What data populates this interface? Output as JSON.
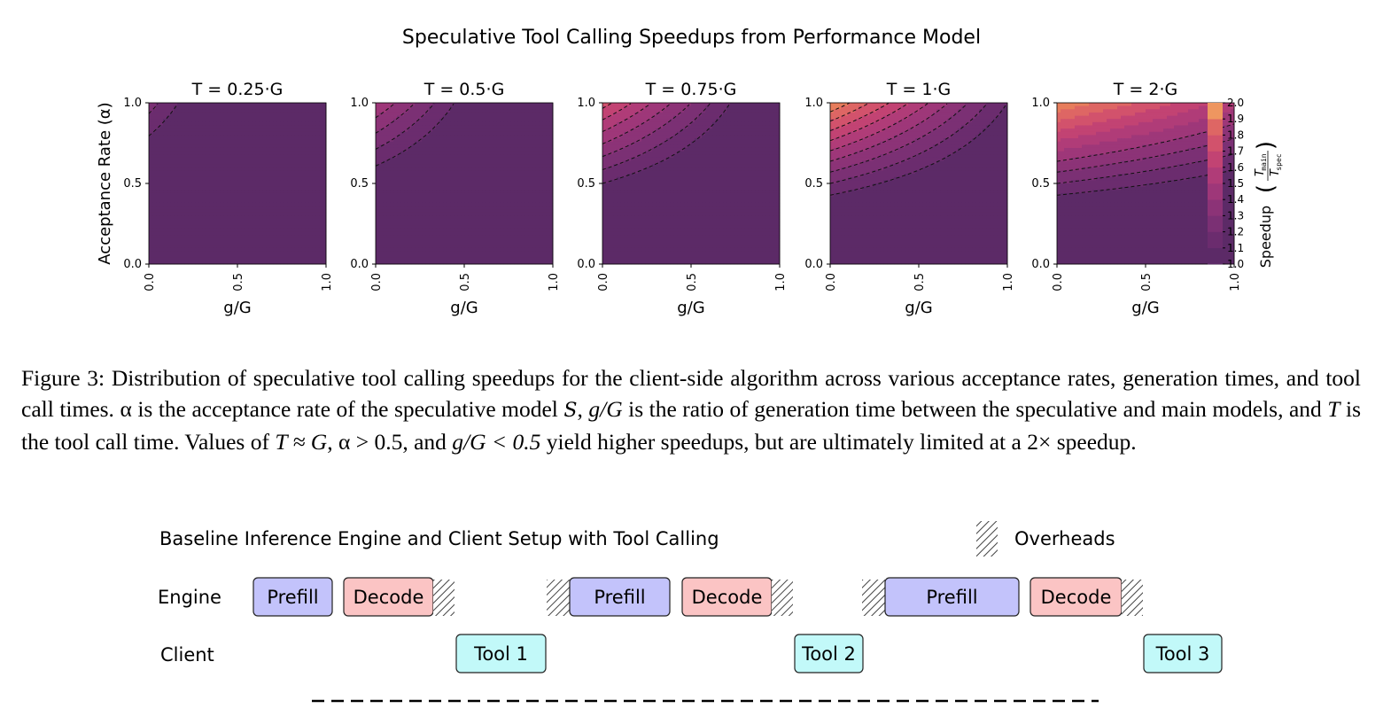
{
  "figure": {
    "title": "Speculative Tool Calling Speedups from Performance Model",
    "ylabel": "Acceptance Rate (α)",
    "xlabel": "g/G",
    "colorbar_label": "Speedup",
    "colorbar_fraction_num": "T",
    "colorbar_fraction_num_sub": "main",
    "colorbar_fraction_den": "T",
    "colorbar_fraction_den_sub": "spec",
    "colormap": [
      "#5c2a67",
      "#6b2c6e",
      "#7b3074",
      "#8c3377",
      "#9e3779",
      "#b03c78",
      "#c24373",
      "#d2526c",
      "#de6664",
      "#e77d5c",
      "#ee9660"
    ]
  },
  "chart_data": [
    {
      "type": "heatmap",
      "title": "T = 0.25·G",
      "T_over_G": 0.25,
      "xlabel": "g/G",
      "ylabel": "Acceptance Rate (α)",
      "xlim": [
        0,
        1
      ],
      "ylim": [
        0,
        1
      ],
      "xticks": [
        "0.0",
        "0.5",
        "1.0"
      ],
      "yticks": [
        "0.0",
        "0.5",
        "1.0"
      ],
      "max_speedup": 1.22
    },
    {
      "type": "heatmap",
      "title": "T = 0.5·G",
      "T_over_G": 0.5,
      "xlabel": "g/G",
      "xlim": [
        0,
        1
      ],
      "ylim": [
        0,
        1
      ],
      "xticks": [
        "0.0",
        "0.5",
        "1.0"
      ],
      "yticks": [
        "0.0",
        "0.5",
        "1.0"
      ],
      "max_speedup": 1.5
    },
    {
      "type": "heatmap",
      "title": "T = 0.75·G",
      "T_over_G": 0.75,
      "xlabel": "g/G",
      "xlim": [
        0,
        1
      ],
      "ylim": [
        0,
        1
      ],
      "xticks": [
        "0.0",
        "0.5",
        "1.0"
      ],
      "yticks": [
        "0.0",
        "0.5",
        "1.0"
      ],
      "max_speedup": 1.75
    },
    {
      "type": "heatmap",
      "title": "T = 1·G",
      "T_over_G": 1,
      "xlabel": "g/G",
      "xlim": [
        0,
        1
      ],
      "ylim": [
        0,
        1
      ],
      "xticks": [
        "0.0",
        "0.5",
        "1.0"
      ],
      "yticks": [
        "0.0",
        "0.5",
        "1.0"
      ],
      "max_speedup": 2.0
    },
    {
      "type": "heatmap",
      "title": "T = 2·G",
      "T_over_G": 2,
      "xlabel": "g/G",
      "xlim": [
        0,
        1
      ],
      "ylim": [
        0,
        1
      ],
      "xticks": [
        "0.0",
        "0.5",
        "1.0"
      ],
      "yticks": [
        "0.0",
        "0.5",
        "1.0"
      ],
      "max_speedup": 1.5
    }
  ],
  "colorbar": {
    "range": [
      1.0,
      2.0
    ],
    "ticks": [
      "1.0",
      "1.1",
      "1.2",
      "1.3",
      "1.4",
      "1.5",
      "1.6",
      "1.7",
      "1.8",
      "1.9",
      "2.0"
    ]
  },
  "caption": {
    "label": "Figure 3:",
    "text_1": " Distribution of speculative tool calling speedups for the client-side algorithm across various acceptance rates, generation times, and tool call times. α is the acceptance rate of the speculative model ",
    "symbol_S": "S",
    "text_2": ", ",
    "symbol_gG": "g/G",
    "text_3": " is the ratio of generation time between the speculative and main models, and ",
    "symbol_T": "T",
    "text_4": " is the tool call time. Values of ",
    "symbol_TG": "T ≈ G",
    "text_5": ", α > 0.5, and ",
    "symbol_gG2": "g/G < 0.5",
    "text_6": " yield higher speedups, but are ultimately limited at a 2× speedup."
  },
  "timeline": {
    "title": "Baseline Inference Engine and Client Setup with Tool Calling",
    "legend_overheads": "Overheads",
    "row_engine": "Engine",
    "row_client": "Client",
    "prefill_label": "Prefill",
    "decode_label": "Decode",
    "tools": [
      "Tool 1",
      "Tool 2",
      "Tool 3"
    ],
    "colors": {
      "prefill": "#c3c3fb",
      "decode": "#fbc4c4",
      "tool": "#c2f9f9"
    }
  }
}
